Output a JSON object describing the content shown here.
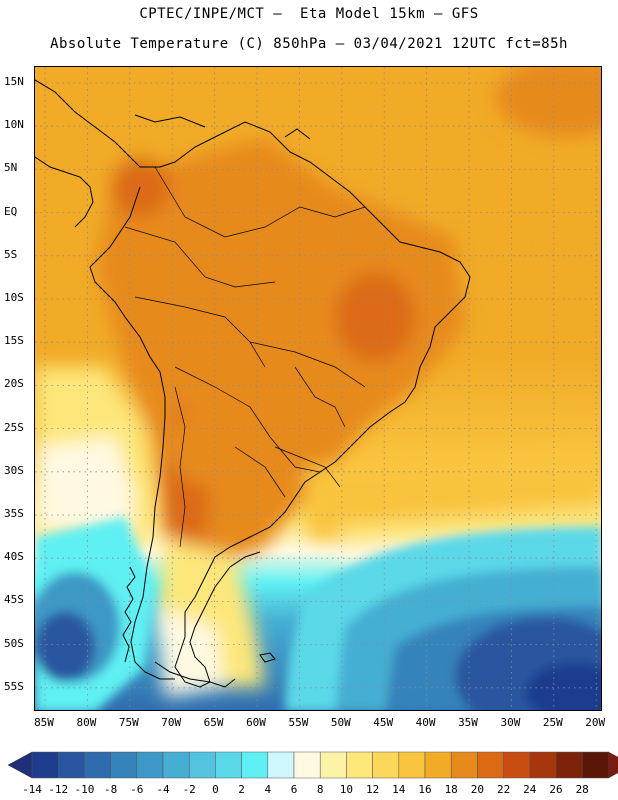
{
  "header": {
    "title_line1": "CPTEC/INPE/MCT –  Eta Model 15km – GFS",
    "title_line2": "Absolute Temperature (C) 850hPa – 03/04/2021 12UTC fct=85h"
  },
  "map": {
    "lat_labels": [
      "15N",
      "10N",
      "5N",
      "EQ",
      "5S",
      "10S",
      "15S",
      "20S",
      "25S",
      "30S",
      "35S",
      "40S",
      "45S",
      "50S",
      "55S"
    ],
    "lon_labels": [
      "85W",
      "80W",
      "75W",
      "70W",
      "65W",
      "60W",
      "55W",
      "50W",
      "45W",
      "40W",
      "35W",
      "30W",
      "25W",
      "20W"
    ],
    "extent": {
      "lon_min": -86,
      "lon_max": -19.5,
      "lat_min": -58,
      "lat_max": 17
    },
    "field": "Absolute Temperature (C) at 850hPa",
    "coastline_color": "#000000",
    "grid_style": "dotted"
  },
  "colorbar": {
    "labels": [
      "-14",
      "-12",
      "-10",
      "-8",
      "-6",
      "-4",
      "-2",
      "0",
      "2",
      "4",
      "6",
      "8",
      "10",
      "12",
      "14",
      "16",
      "18",
      "20",
      "22",
      "24",
      "26",
      "28"
    ],
    "colors": [
      "#1f3d8f",
      "#2a56a0",
      "#2f6cae",
      "#3583bb",
      "#3c98c6",
      "#45aed3",
      "#52c4df",
      "#5ad8e8",
      "#5ff0f3",
      "#cdf7fb",
      "#fff9e2",
      "#fdf3a6",
      "#fde77a",
      "#fcd85a",
      "#f9c43e",
      "#f1ab27",
      "#e78a1c",
      "#dc6a15",
      "#c94d10",
      "#a6360b",
      "#7e2309",
      "#5a1606"
    ],
    "low_arrow_color": "#1f2f7a",
    "high_arrow_color": "#7a1a10"
  }
}
